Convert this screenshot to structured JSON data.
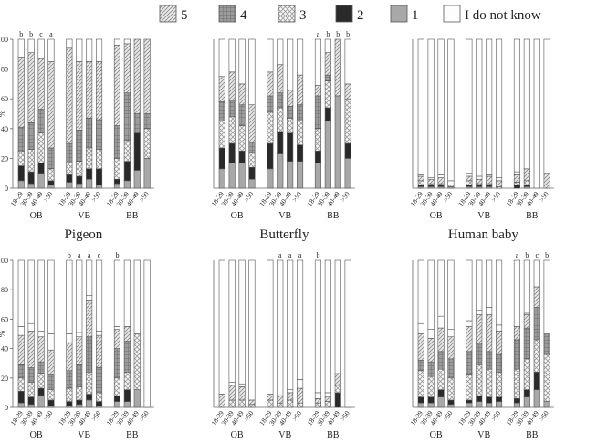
{
  "legend": [
    {
      "label": "5",
      "pattern": "diag"
    },
    {
      "label": "4",
      "pattern": "grid"
    },
    {
      "label": "3",
      "pattern": "cross"
    },
    {
      "label": "2",
      "pattern": "dark"
    },
    {
      "label": "1",
      "pattern": "grey"
    },
    {
      "label": "I do not know",
      "pattern": "white"
    }
  ],
  "chart_data": [
    {
      "type": "bar",
      "stacked": true,
      "title": "Pigeon",
      "ylabel": "%",
      "ylim": [
        0,
        100
      ],
      "yticks": [
        0,
        20,
        40,
        60,
        80,
        100
      ],
      "groups": [
        "OB",
        "VB",
        "BB"
      ],
      "categories": [
        "18-29",
        "30-39",
        "40-49",
        ">50"
      ],
      "bars": [
        {
          "g": 0,
          "c": 0,
          "v": [
            5,
            10,
            10,
            16,
            47,
            12
          ],
          "letter": "b"
        },
        {
          "g": 0,
          "c": 1,
          "v": [
            3,
            8,
            15,
            18,
            47,
            9
          ],
          "letter": "b"
        },
        {
          "g": 0,
          "c": 2,
          "v": [
            10,
            7,
            20,
            16,
            34,
            13
          ],
          "letter": "c"
        },
        {
          "g": 0,
          "c": 3,
          "v": [
            2,
            3,
            8,
            14,
            58,
            15
          ],
          "letter": "a"
        },
        {
          "g": 1,
          "c": 0,
          "v": [
            4,
            5,
            8,
            13,
            64,
            6
          ],
          "letter": ""
        },
        {
          "g": 1,
          "c": 1,
          "v": [
            3,
            5,
            10,
            21,
            46,
            15
          ],
          "letter": ""
        },
        {
          "g": 1,
          "c": 2,
          "v": [
            6,
            7,
            14,
            20,
            38,
            15
          ],
          "letter": ""
        },
        {
          "g": 1,
          "c": 3,
          "v": [
            2,
            11,
            13,
            20,
            39,
            15
          ],
          "letter": ""
        },
        {
          "g": 2,
          "c": 0,
          "v": [
            3,
            3,
            14,
            22,
            54,
            4
          ],
          "letter": ""
        },
        {
          "g": 2,
          "c": 1,
          "v": [
            5,
            13,
            14,
            32,
            33,
            3
          ],
          "letter": ""
        },
        {
          "g": 2,
          "c": 2,
          "v": [
            12,
            25,
            0,
            13,
            50,
            0
          ],
          "letter": ""
        },
        {
          "g": 2,
          "c": 3,
          "v": [
            20,
            0,
            20,
            10,
            50,
            0
          ],
          "letter": ""
        }
      ]
    },
    {
      "type": "bar",
      "stacked": true,
      "title": "Butterfly",
      "ylabel": "",
      "ylim": [
        0,
        100
      ],
      "yticks": [],
      "groups": [
        "OB",
        "VB",
        "BB"
      ],
      "categories": [
        "18-29",
        "30-39",
        "40-49",
        ">50"
      ],
      "bars": [
        {
          "g": 0,
          "c": 0,
          "v": [
            13,
            14,
            18,
            13,
            17,
            25
          ],
          "letter": ""
        },
        {
          "g": 0,
          "c": 1,
          "v": [
            17,
            13,
            18,
            11,
            19,
            22
          ],
          "letter": ""
        },
        {
          "g": 0,
          "c": 2,
          "v": [
            17,
            8,
            17,
            14,
            14,
            30
          ],
          "letter": ""
        },
        {
          "g": 0,
          "c": 3,
          "v": [
            6,
            8,
            10,
            7,
            25,
            44
          ],
          "letter": ""
        },
        {
          "g": 1,
          "c": 0,
          "v": [
            13,
            17,
            21,
            11,
            16,
            22
          ],
          "letter": ""
        },
        {
          "g": 1,
          "c": 1,
          "v": [
            23,
            15,
            16,
            10,
            19,
            17
          ],
          "letter": ""
        },
        {
          "g": 1,
          "c": 2,
          "v": [
            18,
            19,
            10,
            8,
            11,
            34
          ],
          "letter": ""
        },
        {
          "g": 1,
          "c": 3,
          "v": [
            18,
            11,
            17,
            10,
            20,
            24
          ],
          "letter": ""
        },
        {
          "g": 2,
          "c": 0,
          "v": [
            17,
            8,
            15,
            22,
            7,
            31
          ],
          "letter": "a"
        },
        {
          "g": 2,
          "c": 1,
          "v": [
            45,
            9,
            18,
            4,
            15,
            9
          ],
          "letter": "b"
        },
        {
          "g": 2,
          "c": 2,
          "v": [
            62,
            0,
            0,
            0,
            38,
            0
          ],
          "letter": "b"
        },
        {
          "g": 2,
          "c": 3,
          "v": [
            20,
            10,
            30,
            0,
            10,
            30
          ],
          "letter": "b"
        }
      ]
    },
    {
      "type": "bar",
      "stacked": true,
      "title": "Human baby",
      "ylabel": "",
      "ylim": [
        0,
        100
      ],
      "yticks": [],
      "groups": [
        "OB",
        "VB",
        "BB"
      ],
      "categories": [
        "18-29",
        "30-39",
        "40-49",
        ">50"
      ],
      "bars": [
        {
          "g": 0,
          "c": 0,
          "v": [
            1,
            1,
            3,
            0,
            3,
            1
          ],
          "letter": ""
        },
        {
          "g": 0,
          "c": 1,
          "v": [
            1,
            1,
            1,
            0,
            3,
            1
          ],
          "letter": ""
        },
        {
          "g": 0,
          "c": 2,
          "v": [
            1,
            1,
            1,
            0,
            4,
            2
          ],
          "letter": ""
        },
        {
          "g": 0,
          "c": 3,
          "v": [
            1,
            0,
            1,
            0,
            0,
            3
          ],
          "letter": ""
        },
        {
          "g": 1,
          "c": 0,
          "v": [
            1,
            1,
            3,
            0,
            3,
            2
          ],
          "letter": ""
        },
        {
          "g": 1,
          "c": 1,
          "v": [
            1,
            1,
            1,
            0,
            3,
            2
          ],
          "letter": ""
        },
        {
          "g": 1,
          "c": 2,
          "v": [
            1,
            1,
            1,
            0,
            5,
            1
          ],
          "letter": ""
        },
        {
          "g": 1,
          "c": 3,
          "v": [
            0,
            0,
            1,
            0,
            4,
            2
          ],
          "letter": ""
        },
        {
          "g": 2,
          "c": 0,
          "v": [
            0,
            2,
            2,
            0,
            5,
            2
          ],
          "letter": ""
        },
        {
          "g": 2,
          "c": 1,
          "v": [
            1,
            1,
            3,
            0,
            8,
            4
          ],
          "letter": ""
        },
        {
          "g": 2,
          "c": 2,
          "v": [
            0,
            0,
            0,
            0,
            0,
            0
          ],
          "letter": ""
        },
        {
          "g": 2,
          "c": 3,
          "v": [
            0,
            0,
            0,
            0,
            10,
            0
          ],
          "letter": ""
        }
      ]
    },
    {
      "type": "bar",
      "stacked": true,
      "title": "",
      "ylabel": "%",
      "ylim": [
        0,
        100
      ],
      "yticks": [
        0,
        20,
        40,
        60,
        80,
        100
      ],
      "groups": [
        "OB",
        "VB",
        "BB"
      ],
      "categories": [
        "18-29",
        "30-39",
        "40-49",
        ">50"
      ],
      "bars": [
        {
          "g": 0,
          "c": 0,
          "v": [
            3,
            8,
            9,
            9,
            20,
            6
          ],
          "letter": ""
        },
        {
          "g": 0,
          "c": 1,
          "v": [
            2,
            5,
            10,
            10,
            25,
            5
          ],
          "letter": ""
        },
        {
          "g": 0,
          "c": 2,
          "v": [
            8,
            5,
            10,
            8,
            17,
            4
          ],
          "letter": ""
        },
        {
          "g": 0,
          "c": 3,
          "v": [
            1,
            4,
            7,
            10,
            17,
            11
          ],
          "letter": ""
        },
        {
          "g": 1,
          "c": 0,
          "v": [
            1,
            3,
            9,
            12,
            19,
            6
          ],
          "letter": "b"
        },
        {
          "g": 1,
          "c": 1,
          "v": [
            2,
            3,
            9,
            15,
            19,
            3
          ],
          "letter": "a"
        },
        {
          "g": 1,
          "c": 2,
          "v": [
            5,
            4,
            15,
            24,
            25,
            3
          ],
          "letter": "a"
        },
        {
          "g": 1,
          "c": 3,
          "v": [
            1,
            3,
            6,
            17,
            22,
            3
          ],
          "letter": "c"
        },
        {
          "g": 2,
          "c": 0,
          "v": [
            4,
            4,
            12,
            20,
            13,
            2
          ],
          "letter": "b"
        },
        {
          "g": 2,
          "c": 1,
          "v": [
            4,
            8,
            12,
            21,
            10,
            3
          ],
          "letter": ""
        },
        {
          "g": 2,
          "c": 2,
          "v": [
            12,
            0,
            38,
            0,
            0,
            0
          ],
          "letter": ""
        },
        {
          "g": 2,
          "c": 3,
          "v": [
            0,
            0,
            0,
            0,
            0,
            0
          ],
          "letter": ""
        }
      ]
    },
    {
      "type": "bar",
      "stacked": true,
      "title": "",
      "ylabel": "",
      "ylim": [
        0,
        100
      ],
      "yticks": [],
      "groups": [
        "OB",
        "VB",
        "BB"
      ],
      "categories": [
        "18-29",
        "30-39",
        "40-49",
        ">50"
      ],
      "bars": [
        {
          "g": 0,
          "c": 0,
          "v": [
            0,
            0,
            0,
            0,
            9,
            0
          ],
          "letter": ""
        },
        {
          "g": 0,
          "c": 1,
          "v": [
            0,
            0,
            5,
            0,
            10,
            2
          ],
          "letter": ""
        },
        {
          "g": 0,
          "c": 2,
          "v": [
            0,
            0,
            5,
            0,
            9,
            2
          ],
          "letter": ""
        },
        {
          "g": 0,
          "c": 3,
          "v": [
            0,
            0,
            2,
            0,
            3,
            0
          ],
          "letter": ""
        },
        {
          "g": 1,
          "c": 0,
          "v": [
            0,
            0,
            5,
            0,
            4,
            0
          ],
          "letter": ""
        },
        {
          "g": 1,
          "c": 1,
          "v": [
            0,
            0,
            3,
            0,
            5,
            0
          ],
          "letter": "a"
        },
        {
          "g": 1,
          "c": 2,
          "v": [
            0,
            0,
            5,
            0,
            5,
            2
          ],
          "letter": "a"
        },
        {
          "g": 1,
          "c": 3,
          "v": [
            0,
            0,
            3,
            0,
            10,
            6
          ],
          "letter": "a"
        },
        {
          "g": 2,
          "c": 0,
          "v": [
            0,
            0,
            3,
            0,
            3,
            4
          ],
          "letter": "b"
        },
        {
          "g": 2,
          "c": 1,
          "v": [
            0,
            0,
            4,
            0,
            3,
            3
          ],
          "letter": ""
        },
        {
          "g": 2,
          "c": 2,
          "v": [
            0,
            10,
            5,
            0,
            8,
            0
          ],
          "letter": ""
        },
        {
          "g": 2,
          "c": 3,
          "v": [
            0,
            0,
            0,
            0,
            0,
            0
          ],
          "letter": ""
        }
      ]
    },
    {
      "type": "bar",
      "stacked": true,
      "title": "",
      "ylabel": "",
      "ylim": [
        0,
        100
      ],
      "yticks": [],
      "groups": [
        "OB",
        "VB",
        "BB"
      ],
      "categories": [
        "18-29",
        "30-39",
        "40-49",
        ">50"
      ],
      "bars": [
        {
          "g": 0,
          "c": 0,
          "v": [
            3,
            4,
            18,
            7,
            18,
            7
          ],
          "letter": ""
        },
        {
          "g": 0,
          "c": 1,
          "v": [
            3,
            4,
            14,
            10,
            16,
            6
          ],
          "letter": ""
        },
        {
          "g": 0,
          "c": 2,
          "v": [
            7,
            5,
            14,
            12,
            16,
            8
          ],
          "letter": ""
        },
        {
          "g": 0,
          "c": 3,
          "v": [
            2,
            3,
            15,
            13,
            15,
            5
          ],
          "letter": ""
        },
        {
          "g": 1,
          "c": 0,
          "v": [
            3,
            2,
            17,
            16,
            17,
            4
          ],
          "letter": ""
        },
        {
          "g": 1,
          "c": 1,
          "v": [
            4,
            4,
            21,
            14,
            20,
            3
          ],
          "letter": ""
        },
        {
          "g": 1,
          "c": 2,
          "v": [
            3,
            4,
            19,
            12,
            25,
            5
          ],
          "letter": ""
        },
        {
          "g": 1,
          "c": 3,
          "v": [
            4,
            3,
            17,
            12,
            16,
            4
          ],
          "letter": ""
        },
        {
          "g": 2,
          "c": 0,
          "v": [
            3,
            3,
            20,
            20,
            9,
            3
          ],
          "letter": "a"
        },
        {
          "g": 2,
          "c": 1,
          "v": [
            7,
            5,
            21,
            21,
            9,
            1
          ],
          "letter": "b"
        },
        {
          "g": 2,
          "c": 2,
          "v": [
            12,
            12,
            22,
            22,
            14,
            0
          ],
          "letter": "c"
        },
        {
          "g": 2,
          "c": 3,
          "v": [
            4,
            0,
            32,
            14,
            0,
            0
          ],
          "letter": "b"
        }
      ]
    }
  ]
}
